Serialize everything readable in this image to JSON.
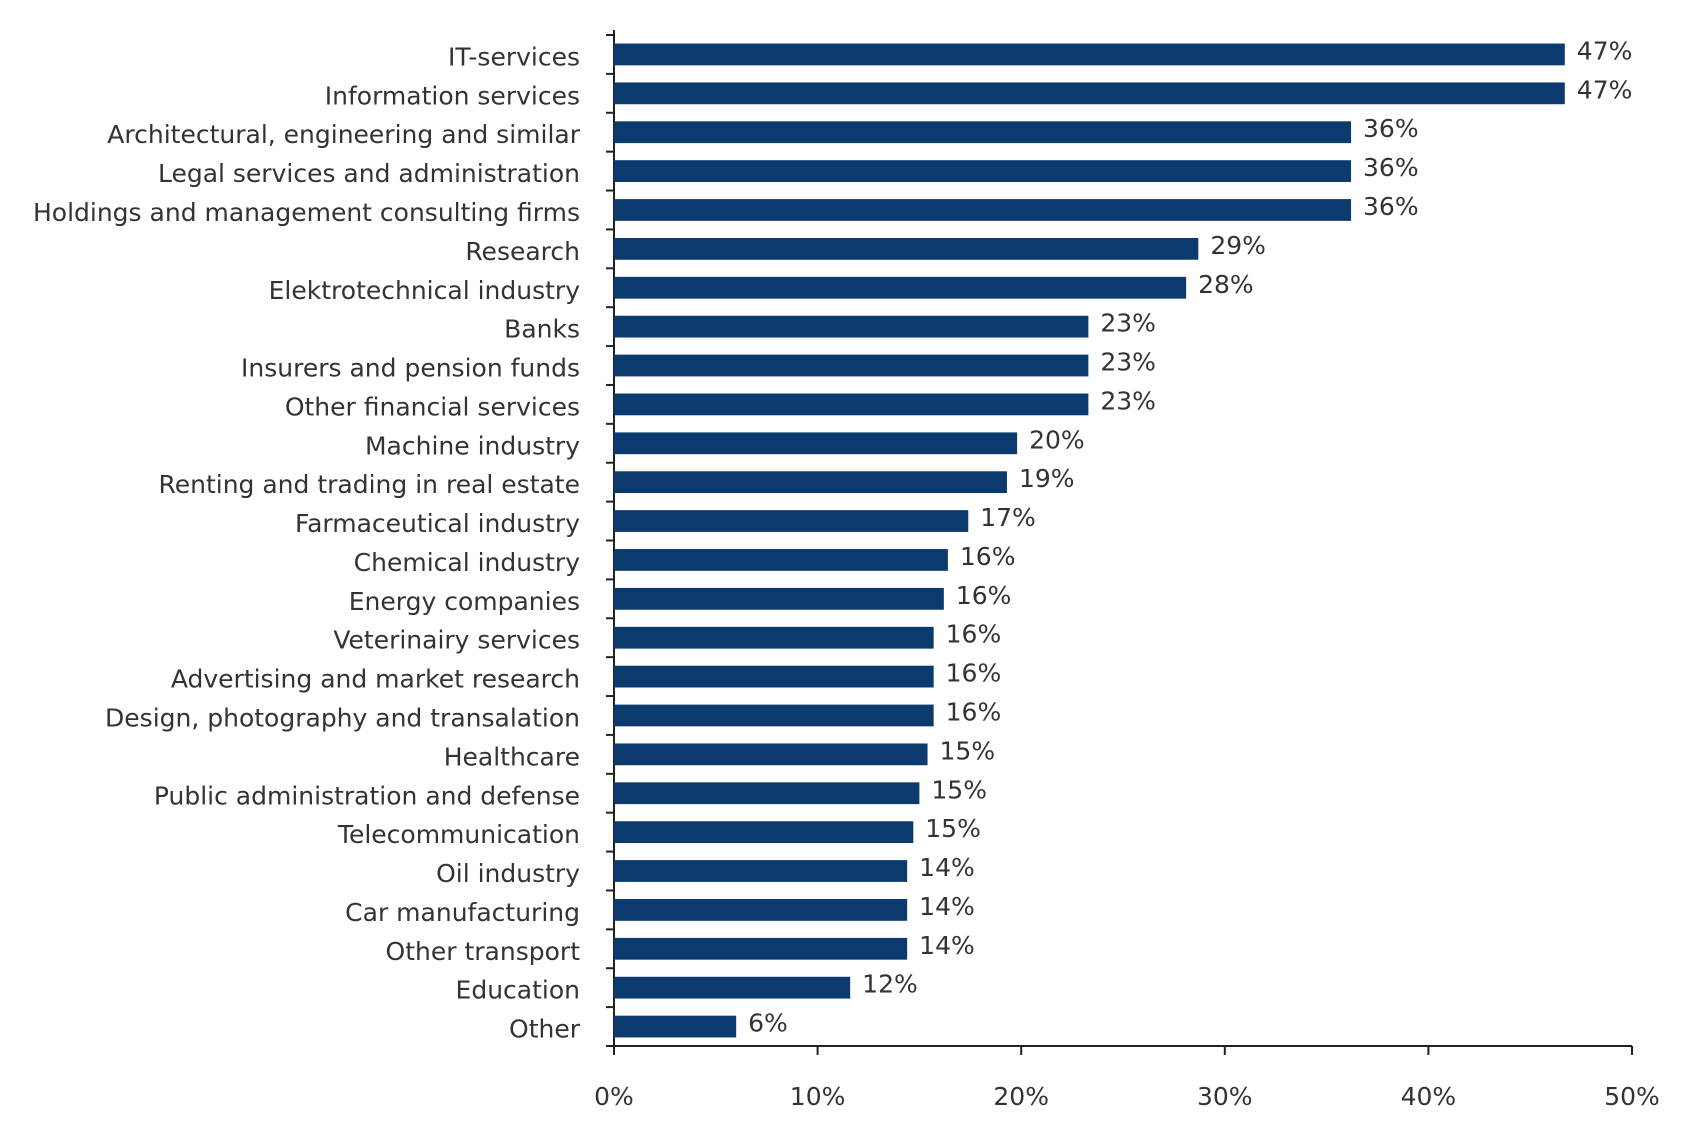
{
  "chart_data": {
    "type": "hbar",
    "categories": [
      "IT-services",
      "Information services",
      "Architectural, engineering and similar",
      "Legal services and administration",
      "Holdings and management consulting firms",
      "Research",
      "Elektrotechnical industry",
      "Banks",
      "Insurers and pension funds",
      "Other financial services",
      "Machine industry",
      "Renting and trading in real estate",
      "Farmaceutical industry",
      "Chemical industry",
      "Energy companies",
      "Veterinairy services",
      "Advertising and market research",
      "Design, photography and transalation",
      "Healthcare",
      "Public administration and defense",
      "Telecommunication",
      "Oil industry",
      "Car manufacturing",
      "Other transport",
      "Education",
      "Other"
    ],
    "values": [
      46.7,
      46.7,
      36.2,
      36.2,
      36.2,
      28.7,
      28.1,
      23.3,
      23.3,
      23.3,
      19.8,
      19.3,
      17.4,
      16.4,
      16.2,
      15.7,
      15.7,
      15.7,
      15.4,
      15.0,
      14.7,
      14.4,
      14.4,
      14.4,
      11.6,
      6.0
    ],
    "value_labels": [
      "47%",
      "47%",
      "36%",
      "36%",
      "36%",
      "29%",
      "28%",
      "23%",
      "23%",
      "23%",
      "20%",
      "19%",
      "17%",
      "16%",
      "16%",
      "16%",
      "16%",
      "16%",
      "15%",
      "15%",
      "15%",
      "14%",
      "14%",
      "14%",
      "12%",
      "6%"
    ],
    "color": "#0b3a6f",
    "xlim": [
      0,
      50
    ],
    "xticks": [
      {
        "value": 0,
        "label": "0%"
      },
      {
        "value": 10,
        "label": "10%"
      },
      {
        "value": 20,
        "label": "20%"
      },
      {
        "value": 30,
        "label": "30%"
      },
      {
        "value": 40,
        "label": "40%"
      },
      {
        "value": 50,
        "label": "50%"
      }
    ]
  }
}
